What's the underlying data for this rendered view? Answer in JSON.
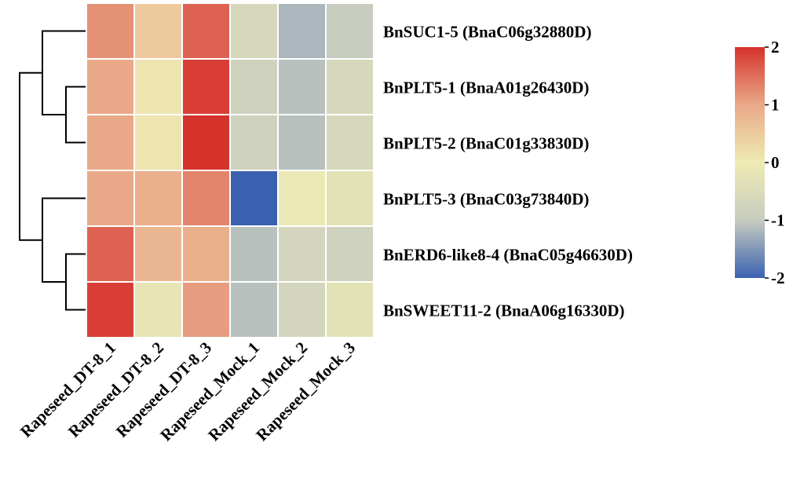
{
  "chart_data": {
    "type": "heatmap",
    "title": "",
    "xlabel": "",
    "ylabel": "",
    "columns": [
      "Rapeseed_DT-8_1",
      "Rapeseed_DT-8_2",
      "Rapeseed_DT-8_3",
      "Rapeseed_Mock_1",
      "Rapeseed_Mock_2",
      "Rapeseed_Mock_3"
    ],
    "rows": [
      "BnSUC1-5 (BnaC06g32880D)",
      "BnPLT5-1 (BnaA01g26430D)",
      "BnPLT5-2 (BnaC01g33830D)",
      "BnPLT5-3 (BnaC03g73840D)",
      "BnERD6-like8-4 (BnaC05g46630D)",
      "BnSWEET11-2 (BnaA06g16330D)"
    ],
    "values": [
      [
        1.2,
        0.5,
        1.6,
        -0.6,
        -1.2,
        -1.0
      ],
      [
        1.0,
        0.1,
        1.9,
        -0.8,
        -1.1,
        -0.6
      ],
      [
        1.0,
        0.1,
        2.0,
        -0.8,
        -1.1,
        -0.6
      ],
      [
        1.0,
        0.9,
        1.3,
        -2.0,
        -0.1,
        -0.3
      ],
      [
        1.6,
        0.8,
        0.9,
        -1.1,
        -0.7,
        -0.8
      ],
      [
        1.9,
        -0.2,
        1.1,
        -1.1,
        -0.7,
        -0.3
      ]
    ],
    "color_scale": {
      "min": -2,
      "max": 2,
      "ticks": [
        "2",
        "1",
        "0",
        "-1",
        "-2"
      ],
      "colors": [
        "#3a62b0",
        "#c7ccbf",
        "#efebb4",
        "#e9a988",
        "#d6322c"
      ]
    },
    "row_dendrogram": true,
    "legend_position": "right"
  }
}
